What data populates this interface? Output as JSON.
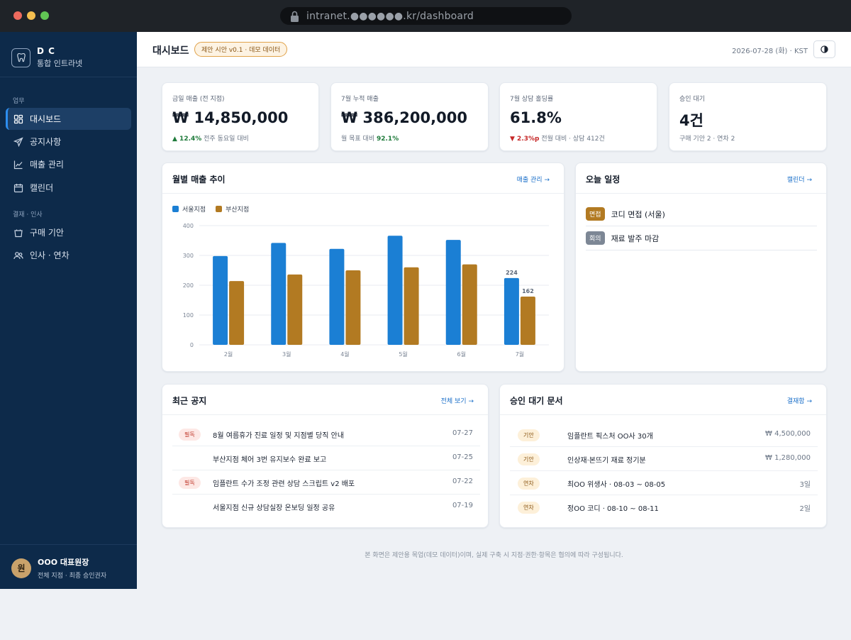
{
  "browser": {
    "url": "intranet.●●●●●●.kr/dashboard"
  },
  "sidebar": {
    "brand_name": "D C",
    "brand_sub": "통합 인트라넷",
    "section_work": "업무",
    "section_approval": "결재 · 인사",
    "items": [
      {
        "label": "대시보드",
        "icon": "dashboard-icon",
        "active": true
      },
      {
        "label": "공지사항",
        "icon": "send-icon"
      },
      {
        "label": "매출 관리",
        "icon": "chart-line-icon"
      },
      {
        "label": "캘린더",
        "icon": "calendar-icon"
      },
      {
        "label": "구매 기안",
        "icon": "bucket-icon"
      },
      {
        "label": "인사 · 연차",
        "icon": "users-icon"
      }
    ],
    "user": {
      "avatar": "원",
      "name": "OOO 대표원장",
      "role": "전체 지점 · 최종 승인권자"
    }
  },
  "header": {
    "title": "대시보드",
    "badge": "제안 시안 v0.1 · 데모 데이터",
    "date": "2026-07-28 (화) · KST"
  },
  "kpis": [
    {
      "label": "금일 매출 (전 지점)",
      "value": "₩ 14,850,000",
      "delta": "▲ 12.4%",
      "delta_type": "up",
      "note": " 전주 동요일 대비"
    },
    {
      "label": "7월 누적 매출",
      "value": "₩ 386,200,000",
      "prefix": "월 목표 대비 ",
      "delta": "92.1%",
      "delta_type": "pos"
    },
    {
      "label": "7월 상담 홀딩률",
      "value": "61.8%",
      "delta": "▼ 2.3%p",
      "delta_type": "down",
      "note": " 전월 대비 · 상담 412건"
    },
    {
      "label": "승인 대기",
      "value": "4건",
      "prefix": "구매 기안 2 · 연차 2"
    }
  ],
  "sales_card": {
    "title": "월별 매출 추이",
    "link": "매출 관리 →"
  },
  "chart_data": {
    "type": "bar",
    "categories": [
      "2월",
      "3월",
      "4월",
      "5월",
      "6월",
      "7월"
    ],
    "series": [
      {
        "name": "서울지점",
        "color": "#1b7fd4",
        "values": [
          298,
          342,
          322,
          366,
          352,
          224
        ]
      },
      {
        "name": "부산지점",
        "color": "#b27a22",
        "values": [
          214,
          236,
          250,
          260,
          270,
          162
        ]
      }
    ],
    "data_labels": {
      "series_0": "224",
      "series_1": "162"
    },
    "yticks": [
      "400",
      "300",
      "200",
      "100",
      "0"
    ],
    "ylim": [
      0,
      400
    ],
    "grid": true,
    "legend": "top-left"
  },
  "schedule_card": {
    "title": "오늘 일정",
    "link": "캘린더 →",
    "items": [
      {
        "tag": "면접",
        "tag_color": "#b27a22",
        "text": "코디 면접 (서울)"
      },
      {
        "tag": "회의",
        "tag_color": "#7d8795",
        "text": "재료 발주 마감"
      }
    ]
  },
  "notices_card": {
    "title": "최근 공지",
    "link": "전체 보기 →",
    "items": [
      {
        "badge": "필독",
        "text": "8월 여름휴가 진료 일정 및 지점별 당직 안내",
        "date": "07-27"
      },
      {
        "badge": "",
        "text": "부산지점 체어 3번 유지보수 완료 보고",
        "date": "07-25"
      },
      {
        "badge": "필독",
        "text": "임플란트 수가 조정 관련 상담 스크립트 v2 배포",
        "date": "07-22"
      },
      {
        "badge": "",
        "text": "서울지점 신규 상담실장 온보딩 일정 공유",
        "date": "07-19"
      }
    ]
  },
  "approvals_card": {
    "title": "승인 대기 문서",
    "link": "결재함 →",
    "items": [
      {
        "badge": "기안",
        "text": "임플란트 픽스처 OO사 30개",
        "amount": "₩ 4,500,000"
      },
      {
        "badge": "기안",
        "text": "인상재·본뜨기 재료 정기분",
        "amount": "₩ 1,280,000"
      },
      {
        "badge": "연차",
        "text": "최OO 위생사 · 08-03 ~ 08-05",
        "amount": "3일"
      },
      {
        "badge": "연차",
        "text": "정OO 코디 · 08-10 ~ 08-11",
        "amount": "2일"
      }
    ]
  },
  "footnote": "본 화면은 제안용 목업(데모 데이터)이며, 실제 구축 시 지점·권한·항목은 협의에 따라 구성됩니다."
}
